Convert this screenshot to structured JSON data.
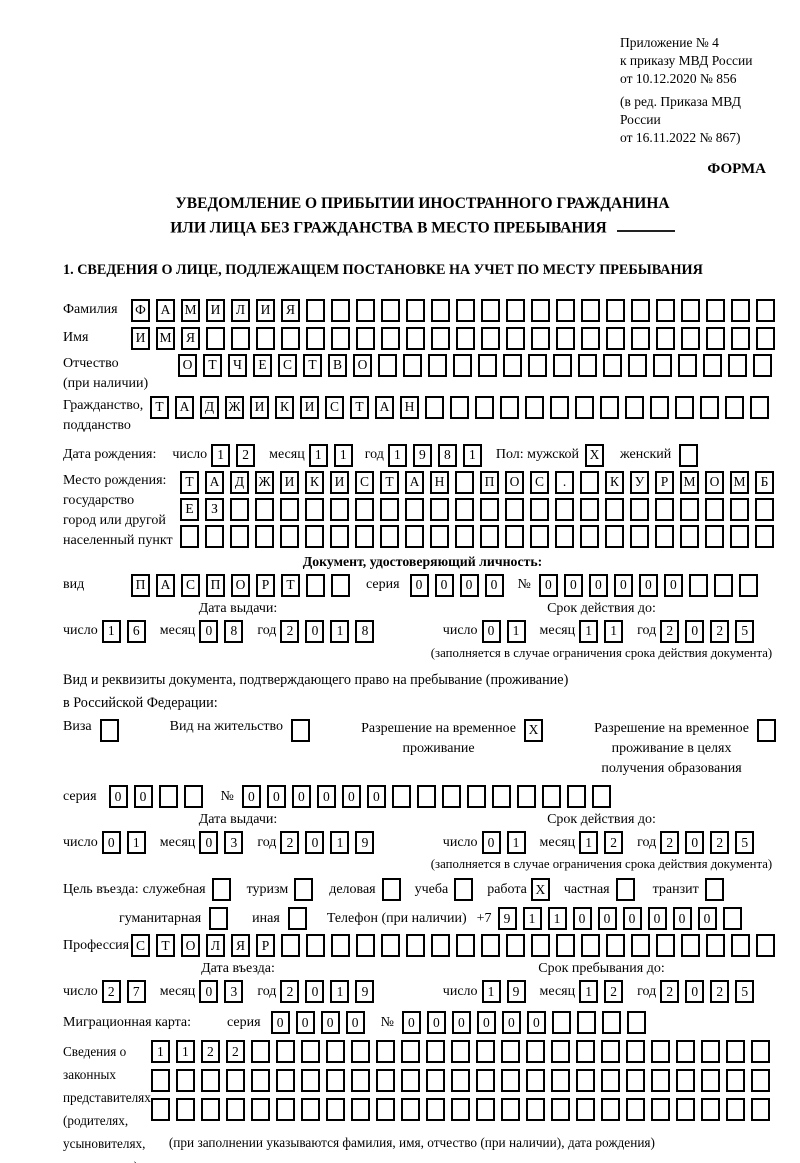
{
  "annex": {
    "lines": [
      "Приложение № 4",
      "к приказу МВД России",
      "от 10.12.2020 № 856"
    ],
    "amendment_lines": [
      "(в ред. Приказа МВД России",
      "от 16.11.2022 № 867)"
    ]
  },
  "form_word": "ФОРМА",
  "title_line1": "УВЕДОМЛЕНИЕ О ПРИБЫТИИ ИНОСТРАННОГО ГРАЖДАНИНА",
  "title_line2": "ИЛИ ЛИЦА БЕЗ ГРАЖДАНСТВА В МЕСТО ПРЕБЫВАНИЯ",
  "section1_heading": "1. СВЕДЕНИЯ О ЛИЦЕ, ПОДЛЕЖАЩЕМ ПОСТАНОВКЕ НА УЧЕТ ПО МЕСТУ ПРЕБЫВАНИЯ",
  "date_words": {
    "day": "число",
    "month": "месяц",
    "year": "год"
  },
  "surname": {
    "label": "Фамилия",
    "cells": {
      "text": "ФАМИЛИЯ",
      "len": 26
    }
  },
  "given_name": {
    "label": "Имя",
    "cells": {
      "text": "ИМЯ",
      "len": 26
    }
  },
  "patronymic": {
    "label": "Отчество",
    "label2": "(при наличии)",
    "cells": {
      "text": "ОТЧЕСТВО",
      "len": 24
    }
  },
  "citizenship": {
    "label": "Гражданство,",
    "label2": "подданство",
    "cells": {
      "text": "ТАДЖИКИСТАН",
      "len": 25
    }
  },
  "birth": {
    "label": "Дата рождения:",
    "day": {
      "text": "12",
      "len": 2
    },
    "month": {
      "text": "11",
      "len": 2
    },
    "year": {
      "text": "1981",
      "len": 4
    },
    "sex_label": "Пол: мужской",
    "male_box": {
      "text": "X",
      "len": 1
    },
    "female_label": "женский",
    "female_box": {
      "text": "",
      "len": 1
    }
  },
  "birth_place": {
    "labels": [
      "Место рождения:",
      "государство",
      "город или другой",
      "населенный пункт"
    ],
    "row1": {
      "text": "ТАДЖИКИСТАН ПОС. КУРМОМБ",
      "len": 24
    },
    "row2": {
      "text": "ЕЗ",
      "len": 24
    },
    "row3": {
      "text": "",
      "len": 24
    }
  },
  "identity_doc": {
    "heading": "Документ, удостоверяющий личность:",
    "kind_label": "вид",
    "kind": {
      "text": "ПАСПОРТ",
      "len": 9
    },
    "series_label": "серия",
    "series": {
      "text": "0000",
      "len": 4
    },
    "number_sign": "№",
    "number": {
      "text": "000000",
      "len": 9
    },
    "issue_heading": "Дата выдачи:",
    "issue_day": {
      "text": "16",
      "len": 2
    },
    "issue_month": {
      "text": "08",
      "len": 2
    },
    "issue_year": {
      "text": "2018",
      "len": 4
    },
    "valid_heading": "Срок действия до:",
    "valid_day": {
      "text": "01",
      "len": 2
    },
    "valid_month": {
      "text": "11",
      "len": 2
    },
    "valid_year": {
      "text": "2025",
      "len": 4
    },
    "note": "(заполняется в случае ограничения срока действия документа)"
  },
  "residence": {
    "intro1": "Вид и реквизиты документа, подтверждающего право на пребывание (проживание)",
    "intro2": "в Российской Федерации:",
    "opt1_label": "Виза",
    "opt1_box": {
      "text": "",
      "len": 1
    },
    "opt2_label": "Вид на жительство",
    "opt2_box": {
      "text": "",
      "len": 1
    },
    "opt3_lines": [
      "Разрешение на временное",
      "проживание"
    ],
    "opt3_box": {
      "text": "X",
      "len": 1
    },
    "opt4_lines": [
      "Разрешение на временное",
      "проживание в целях",
      "получения образования"
    ],
    "opt4_box": {
      "text": "",
      "len": 1
    },
    "series_label": "серия",
    "series": {
      "text": "00",
      "len": 4
    },
    "number_sign": "№",
    "number": {
      "text": "000000",
      "len": 15
    },
    "issue_heading": "Дата выдачи:",
    "issue_day": {
      "text": "01",
      "len": 2
    },
    "issue_month": {
      "text": "03",
      "len": 2
    },
    "issue_year": {
      "text": "2019",
      "len": 4
    },
    "valid_heading": "Срок действия до:",
    "valid_day": {
      "text": "01",
      "len": 2
    },
    "valid_month": {
      "text": "12",
      "len": 2
    },
    "valid_year": {
      "text": "2025",
      "len": 4
    },
    "note": "(заполняется в случае ограничения срока действия документа)"
  },
  "purpose": {
    "label": "Цель въезда:",
    "o1": "служебная",
    "b1": {
      "text": "",
      "len": 1
    },
    "o2": "туризм",
    "b2": {
      "text": "",
      "len": 1
    },
    "o3": "деловая",
    "b3": {
      "text": "",
      "len": 1
    },
    "o4": "учеба",
    "b4": {
      "text": "",
      "len": 1
    },
    "o5": "работа",
    "b5": {
      "text": "X",
      "len": 1
    },
    "o6": "частная",
    "b6": {
      "text": "",
      "len": 1
    },
    "o7": "транзит",
    "b7": {
      "text": "",
      "len": 1
    },
    "o8": "гуманитарная",
    "b8": {
      "text": "",
      "len": 1
    },
    "o9": "иная",
    "b9": {
      "text": "",
      "len": 1
    }
  },
  "phone": {
    "label": "Телефон (при наличии)",
    "prefix": "+7",
    "cells": {
      "text": "911000000",
      "len": 10
    }
  },
  "profession": {
    "label": "Профессия",
    "cells": {
      "text": "СТОЛЯР",
      "len": 26
    }
  },
  "entry": {
    "issue_heading": "Дата въезда:",
    "issue_day": {
      "text": "27",
      "len": 2
    },
    "issue_month": {
      "text": "03",
      "len": 2
    },
    "issue_year": {
      "text": "2019",
      "len": 4
    },
    "valid_heading": "Срок пребывания до:",
    "valid_day": {
      "text": "19",
      "len": 2
    },
    "valid_month": {
      "text": "12",
      "len": 2
    },
    "valid_year": {
      "text": "2025",
      "len": 4
    }
  },
  "migration_card": {
    "label": "Миграционная карта:",
    "series_label": "серия",
    "series": {
      "text": "0000",
      "len": 4
    },
    "number_sign": "№",
    "number": {
      "text": "000000",
      "len": 10
    }
  },
  "representatives": {
    "labels": [
      "Сведения о",
      "законных",
      "представителях",
      "(родителях,",
      "усыновителях,",
      "попечителях)"
    ],
    "row1": {
      "text": "1122",
      "len": 25
    },
    "row2": {
      "text": "",
      "len": 25
    },
    "row3": {
      "text": "",
      "len": 25
    },
    "note": "(при заполнении указываются фамилия, имя, отчество (при наличии), дата рождения)"
  }
}
